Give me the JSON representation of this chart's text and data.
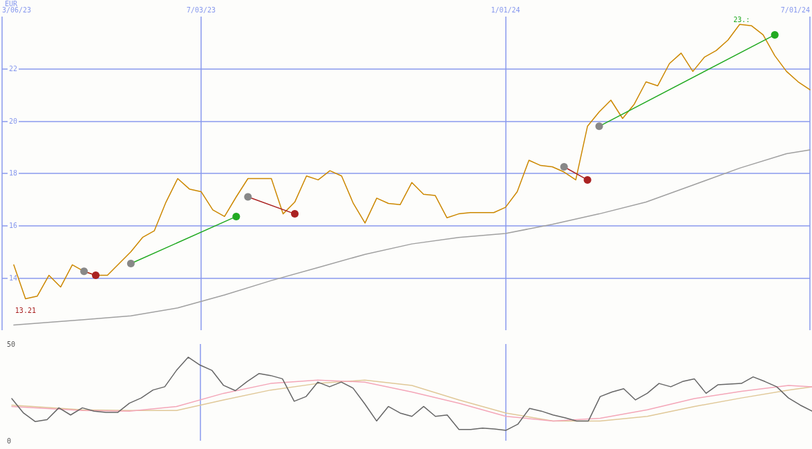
{
  "chart_data": [
    {
      "type": "line",
      "ylabel": "EUR",
      "x": [
        "2023-03-13",
        "2023-03-20",
        "2023-03-27",
        "2023-04-03",
        "2023-04-10",
        "2023-04-17",
        "2023-04-24",
        "2023-05-01",
        "2023-05-08",
        "2023-05-15",
        "2023-05-22",
        "2023-05-29",
        "2023-06-05",
        "2023-06-12",
        "2023-06-19",
        "2023-06-26",
        "2023-07-03",
        "2023-07-10",
        "2023-07-17",
        "2023-07-24",
        "2023-07-31",
        "2023-08-07",
        "2023-08-14",
        "2023-08-21",
        "2023-08-28",
        "2023-09-04",
        "2023-09-11",
        "2023-09-18",
        "2023-09-25",
        "2023-10-02",
        "2023-10-09",
        "2023-10-16",
        "2023-10-23",
        "2023-10-30",
        "2023-11-06",
        "2023-11-13",
        "2023-11-20",
        "2023-11-27",
        "2023-12-04",
        "2023-12-11",
        "2023-12-18",
        "2023-12-25",
        "2024-01-01",
        "2024-01-08",
        "2024-01-15",
        "2024-01-22",
        "2024-01-29",
        "2024-02-05",
        "2024-02-12",
        "2024-02-19",
        "2024-02-26",
        "2024-03-04",
        "2024-03-11",
        "2024-03-18",
        "2024-03-25",
        "2024-04-01",
        "2024-04-08",
        "2024-04-15",
        "2024-04-22",
        "2024-04-29",
        "2024-05-06",
        "2024-05-13",
        "2024-05-20",
        "2024-05-27",
        "2024-06-03",
        "2024-06-10",
        "2024-06-17",
        "2024-06-24",
        "2024-07-01"
      ],
      "series": [
        {
          "color": "#cc8800",
          "values": [
            14.5,
            13.2,
            13.3,
            14.1,
            13.65,
            14.5,
            14.25,
            14.1,
            14.1,
            14.55,
            15.0,
            15.55,
            15.8,
            16.9,
            17.8,
            17.4,
            17.3,
            16.6,
            16.35,
            17.1,
            17.8,
            17.8,
            17.8,
            16.45,
            16.9,
            17.9,
            17.75,
            18.1,
            17.9,
            16.85,
            16.1,
            17.05,
            16.85,
            16.8,
            17.65,
            17.2,
            17.15,
            16.3,
            16.45,
            16.5,
            16.5,
            16.5,
            16.7,
            17.3,
            18.5,
            18.3,
            18.25,
            18.05,
            17.75,
            19.8,
            20.35,
            20.8,
            20.1,
            20.65,
            21.5,
            21.35,
            22.2,
            22.6,
            21.9,
            22.45,
            22.7,
            23.1,
            23.7,
            23.65,
            23.3,
            22.5,
            21.9,
            21.5,
            21.2
          ]
        },
        {
          "color": "#a0a0a0",
          "x": [
            "2023-03-13",
            "2023-04-24",
            "2023-05-22",
            "2023-06-19",
            "2023-07-17",
            "2023-08-14",
            "2023-09-11",
            "2023-10-09",
            "2023-11-06",
            "2023-12-04",
            "2024-01-01",
            "2024-01-29",
            "2024-02-26",
            "2024-03-25",
            "2024-04-22",
            "2024-05-20",
            "2024-06-17",
            "2024-07-01"
          ],
          "values": [
            12.2,
            12.4,
            12.55,
            12.85,
            13.35,
            13.9,
            14.4,
            14.9,
            15.3,
            15.55,
            15.7,
            16.05,
            16.45,
            16.9,
            17.55,
            18.2,
            18.75,
            18.9
          ]
        },
        {
          "color": "#aa2222",
          "marker": "circle",
          "colors": [
            "#888888",
            "#aa2222"
          ],
          "x": [
            "2023-04-24",
            "2023-05-01"
          ],
          "values": [
            14.25,
            14.1
          ]
        },
        {
          "color": "#22aa22",
          "marker": "circle",
          "colors": [
            "#888888",
            "#22aa22"
          ],
          "x": [
            "2023-05-22",
            "2023-07-24"
          ],
          "values": [
            14.55,
            16.35
          ]
        },
        {
          "color": "#aa2222",
          "marker": "circle",
          "colors": [
            "#888888",
            "#aa2222"
          ],
          "x": [
            "2023-07-31",
            "2023-08-28"
          ],
          "values": [
            17.1,
            16.45
          ]
        },
        {
          "color": "#aa2222",
          "marker": "circle",
          "colors": [
            "#888888",
            "#aa2222"
          ],
          "x": [
            "2024-02-05",
            "2024-02-19"
          ],
          "values": [
            18.25,
            17.75
          ]
        },
        {
          "color": "#22aa22",
          "marker": "circle",
          "colors": [
            "#888888",
            "#22aa22"
          ],
          "x": [
            "2024-02-26",
            "2024-06-10"
          ],
          "values": [
            19.8,
            23.3
          ]
        }
      ],
      "xlim": [
        "2023-03-06",
        "2024-07-01"
      ],
      "xticks": [
        {
          "value": "2023-03-06",
          "label": "3/06/23"
        },
        {
          "value": "2023-07-03",
          "label": "7/03/23"
        },
        {
          "value": "2024-01-01",
          "label": "1/01/24"
        },
        {
          "value": "2024-07-01",
          "label": "7/01/24"
        }
      ],
      "ylim": [
        12,
        24
      ],
      "yticks": [
        14,
        16,
        18,
        20,
        22
      ],
      "grid": true,
      "annotations": [
        {
          "text": "13.21",
          "x": "2023-03-20",
          "y": 13.21
        },
        {
          "text": "23.:",
          "x": "2024-05-27",
          "y": 23.7
        }
      ]
    },
    {
      "type": "line",
      "x": [
        "2023-03-13",
        "2023-03-20",
        "2023-03-27",
        "2023-04-03",
        "2023-04-10",
        "2023-04-17",
        "2023-04-24",
        "2023-05-01",
        "2023-05-08",
        "2023-05-15",
        "2023-05-22",
        "2023-05-29",
        "2023-06-05",
        "2023-06-12",
        "2023-06-19",
        "2023-06-26",
        "2023-07-03",
        "2023-07-10",
        "2023-07-17",
        "2023-07-24",
        "2023-07-31",
        "2023-08-07",
        "2023-08-14",
        "2023-08-21",
        "2023-08-28",
        "2023-09-04",
        "2023-09-11",
        "2023-09-18",
        "2023-09-25",
        "2023-10-02",
        "2023-10-09",
        "2023-10-16",
        "2023-10-23",
        "2023-10-30",
        "2023-11-06",
        "2023-11-13",
        "2023-11-20",
        "2023-11-27",
        "2023-12-04",
        "2023-12-11",
        "2023-12-18",
        "2023-12-25",
        "2024-01-01",
        "2024-01-08",
        "2024-01-15",
        "2024-01-22",
        "2024-01-29",
        "2024-02-05",
        "2024-02-12",
        "2024-02-19",
        "2024-02-26",
        "2024-03-04",
        "2024-03-11",
        "2024-03-18",
        "2024-03-25",
        "2024-04-01",
        "2024-04-08",
        "2024-04-15",
        "2024-04-22",
        "2024-04-29",
        "2024-05-06",
        "2024-05-13",
        "2024-05-20",
        "2024-05-27",
        "2024-06-03",
        "2024-06-10",
        "2024-06-17",
        "2024-06-24",
        "2024-07-01"
      ],
      "series": [
        {
          "color": "#e0c898",
          "x": [
            "2023-03-13",
            "2023-04-24",
            "2023-05-22",
            "2023-06-19",
            "2023-07-17",
            "2023-08-14",
            "2023-09-11",
            "2023-10-09",
            "2023-11-06",
            "2023-12-04",
            "2024-01-01",
            "2024-01-29",
            "2024-02-26",
            "2024-03-25",
            "2024-04-22",
            "2024-05-20",
            "2024-06-17",
            "2024-07-01"
          ],
          "values": [
            18.4,
            16,
            15.6,
            15.6,
            21.1,
            26.2,
            29.6,
            31.3,
            28.6,
            21.1,
            14.3,
            10.2,
            10.2,
            12.6,
            17.7,
            22.1,
            26.2,
            27.9
          ]
        },
        {
          "color": "#f4a6b8",
          "x": [
            "2023-03-13",
            "2023-04-24",
            "2023-05-22",
            "2023-06-19",
            "2023-07-17",
            "2023-08-14",
            "2023-09-11",
            "2023-10-09",
            "2023-11-06",
            "2023-12-04",
            "2024-01-01",
            "2024-01-29",
            "2024-02-26",
            "2024-03-25",
            "2024-04-22",
            "2024-05-20",
            "2024-06-17",
            "2024-07-01"
          ],
          "values": [
            17.7,
            15.6,
            15.3,
            17.7,
            24.5,
            29.6,
            31.3,
            30.3,
            25.2,
            19.4,
            12.6,
            10.2,
            11.6,
            16,
            21.8,
            25.5,
            28.6,
            27.9
          ]
        },
        {
          "color": "#666666",
          "values": [
            21.8,
            14.3,
            9.9,
            10.9,
            17,
            13.3,
            17,
            15.3,
            14.6,
            14.6,
            19.4,
            22.1,
            26.2,
            27.9,
            36.4,
            43.2,
            39.1,
            36.4,
            28.6,
            25.9,
            30.6,
            34.7,
            33.7,
            32,
            20.4,
            22.8,
            30.3,
            27.9,
            30.3,
            27.2,
            19,
            10.2,
            17.7,
            14.3,
            12.6,
            17.7,
            12.6,
            13.3,
            5.8,
            5.8,
            6.5,
            6.1,
            5.4,
            8.5,
            16.7,
            15.3,
            13.3,
            11.9,
            10.2,
            10.2,
            22.8,
            25.2,
            26.9,
            21.1,
            24.5,
            29.6,
            27.9,
            30.6,
            32,
            24.5,
            28.9,
            29.3,
            29.6,
            33,
            30.6,
            27.9,
            22.1,
            18.4,
            15.3
          ]
        }
      ],
      "xlim": [
        "2023-03-06",
        "2024-07-01"
      ],
      "xticks": [
        {
          "value": "2023-07-03",
          "label": null
        },
        {
          "value": "2024-01-01",
          "label": null
        }
      ],
      "ylim": [
        0,
        50
      ],
      "yticks": [
        0,
        50
      ],
      "grid": "x",
      "tick_labels": "y"
    }
  ]
}
